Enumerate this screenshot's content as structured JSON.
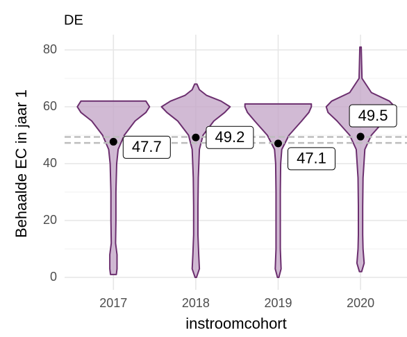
{
  "chart_data": {
    "type": "violin",
    "title": "DE",
    "x_label": "instroomcohort",
    "y_label": "Behaalde EC in jaar 1",
    "categories": [
      "2017",
      "2018",
      "2019",
      "2020"
    ],
    "values": [
      47.7,
      49.2,
      47.1,
      49.5
    ],
    "violins": [
      {
        "y": [
          1,
          3,
          8,
          12,
          20,
          30,
          40,
          45,
          50,
          55,
          58,
          60,
          62
        ],
        "width": [
          0.08,
          0.1,
          0.1,
          0.06,
          0.07,
          0.07,
          0.09,
          0.13,
          0.3,
          0.6,
          0.9,
          1,
          0.9
        ]
      },
      {
        "y": [
          0,
          3,
          8,
          15,
          25,
          35,
          45,
          50,
          55,
          58,
          60,
          62,
          64,
          66,
          68
        ],
        "width": [
          0.02,
          0.1,
          0.08,
          0.06,
          0.06,
          0.07,
          0.1,
          0.2,
          0.5,
          0.8,
          0.95,
          0.7,
          0.3,
          0.1,
          0.03
        ]
      },
      {
        "y": [
          0,
          3,
          10,
          20,
          30,
          40,
          45,
          50,
          55,
          58,
          60,
          61
        ],
        "width": [
          0.02,
          0.08,
          0.06,
          0.06,
          0.06,
          0.07,
          0.1,
          0.3,
          0.65,
          0.85,
          0.92,
          0.92
        ]
      },
      {
        "y": [
          2,
          5,
          10,
          15,
          25,
          35,
          45,
          50,
          55,
          58,
          60,
          62,
          65,
          70,
          75,
          81
        ],
        "width": [
          0.03,
          0.1,
          0.07,
          0.06,
          0.06,
          0.07,
          0.12,
          0.3,
          0.65,
          0.9,
          0.95,
          0.8,
          0.3,
          0.04,
          0.03,
          0.02
        ]
      }
    ],
    "reference_lines": [
      49.4,
      47.3
    ],
    "fill_color": "#c5a9c9",
    "line_color": "#6b2e6e",
    "ylim": [
      -2,
      83
    ],
    "yticks": [
      0,
      20,
      40,
      60,
      80
    ],
    "yminor": [
      10,
      30,
      50,
      70
    ],
    "grid": true
  }
}
